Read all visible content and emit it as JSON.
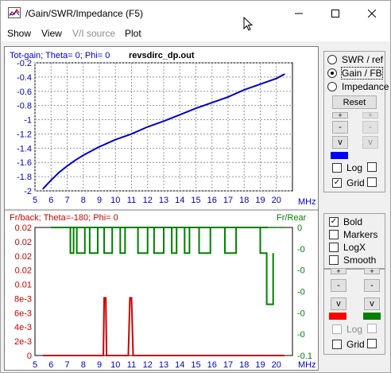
{
  "window": {
    "title": "/Gain/SWR/Impedance (F5)",
    "buttons": {
      "minimize": "—",
      "maximize": "☐",
      "close": "✕"
    }
  },
  "menu": [
    "Show",
    "View",
    "V/I source",
    "Plot"
  ],
  "top_plot": {
    "left_title": "Tot-gain; Theta= 0; Phi= 0",
    "file_label": "revsdirc_dp.out",
    "line_color": "#0000cc"
  },
  "bottom_plot": {
    "left_title": "Fr/back; Theta=-180; Phi= 0",
    "right_title": "Fr/Rear",
    "left_color": "#cc0000",
    "right_color": "#008000"
  },
  "right_panel_top": {
    "radios": [
      "SWR / ref",
      "Gain / FB",
      "Impedance"
    ],
    "selected_radio": "Gain / FB",
    "reset_label": "Reset",
    "btn_plus": "+",
    "btn_minus": "-",
    "btn_v": "v",
    "swatch_color": "#0000ff",
    "log_label": "Log",
    "grid_label": "Grid",
    "log_checked": false,
    "grid_checked": true
  },
  "right_panel_bottom": {
    "checks": [
      {
        "label": "Bold",
        "checked": true
      },
      {
        "label": "Markers",
        "checked": false
      },
      {
        "label": "LogX",
        "checked": false
      },
      {
        "label": "Smooth",
        "checked": false
      }
    ],
    "btn_plus": "+",
    "btn_minus": "-",
    "btn_v": "v",
    "swatch_left": "#ff0000",
    "swatch_right": "#008000",
    "log_label": "Log",
    "grid_label": "Grid"
  },
  "chart_data": [
    {
      "type": "line",
      "title": "Tot-gain; Theta= 0; Phi= 0",
      "xlabel": "MHz",
      "x_ticks": [
        "5",
        "6",
        "7",
        "8",
        "9",
        "10",
        "11",
        "12",
        "13",
        "14",
        "15",
        "16",
        "17",
        "18",
        "19",
        "20"
      ],
      "y_ticks": [
        "-0.2",
        "-0.4",
        "-0.6",
        "-0.8",
        "-1",
        "-1.2",
        "-1.4",
        "-1.6",
        "-1.8",
        "-2"
      ],
      "xlim": [
        5,
        21
      ],
      "ylim": [
        -2,
        -0.2
      ],
      "grid": true,
      "series": [
        {
          "x": [
            5.5,
            6,
            6.5,
            7,
            7.5,
            8,
            8.5,
            9,
            9.5,
            10,
            11,
            12,
            13,
            14,
            15,
            16,
            17,
            18,
            19,
            20,
            20.5
          ],
          "y": [
            -1.97,
            -1.85,
            -1.74,
            -1.65,
            -1.57,
            -1.5,
            -1.44,
            -1.38,
            -1.33,
            -1.28,
            -1.2,
            -1.1,
            -1.02,
            -0.93,
            -0.84,
            -0.76,
            -0.68,
            -0.58,
            -0.5,
            -0.42,
            -0.36
          ]
        }
      ]
    },
    {
      "type": "line",
      "title": "Fr/back; Theta=-180; Phi= 0",
      "xlabel": "MHz",
      "x_ticks": [
        "5",
        "6",
        "7",
        "8",
        "9",
        "10",
        "11",
        "12",
        "13",
        "14",
        "15",
        "16",
        "17",
        "18",
        "19",
        "20"
      ],
      "y_left_ticks": [
        "0.02",
        "0.02",
        "0.02",
        "0.02",
        "0.01",
        "8e-3",
        "6e-3",
        "4e-3",
        "2e-3",
        "0"
      ],
      "y_right_ticks": [
        "0",
        "-0",
        "-0",
        "-0",
        "-0",
        "-0",
        "-0.1"
      ],
      "right_axis_title": "Fr/Rear",
      "xlim": [
        5,
        21
      ],
      "grid": false,
      "series": [
        {
          "name": "Fr/back",
          "x": [
            5.5,
            9.1,
            9.25,
            9.3,
            9.4,
            9.45,
            10.8,
            10.9,
            11.0,
            11.1,
            20.5
          ],
          "y": [
            0,
            0,
            0,
            0.009,
            0.009,
            0,
            0,
            0.009,
            0.009,
            0,
            0
          ]
        },
        {
          "name": "Fr/Rear",
          "x": [
            6,
            7.2,
            7.4,
            7.6,
            8.1,
            8.4,
            8.9,
            9.3,
            9.8,
            10.3,
            10.6,
            11.4,
            12.0,
            12.4,
            13.0,
            13.5,
            13.8,
            14.3,
            14.6,
            15.2,
            15.9,
            16.8,
            17.5,
            19.0,
            19.4,
            19.8
          ],
          "y": [
            0,
            -0.02,
            0,
            -0.02,
            0,
            -0.02,
            0,
            -0.02,
            0,
            -0.02,
            0,
            -0.02,
            0,
            -0.02,
            0,
            -0.02,
            0,
            -0.02,
            0,
            -0.02,
            0,
            -0.02,
            0,
            -0.02,
            -0.06,
            -0.02
          ]
        }
      ]
    }
  ]
}
